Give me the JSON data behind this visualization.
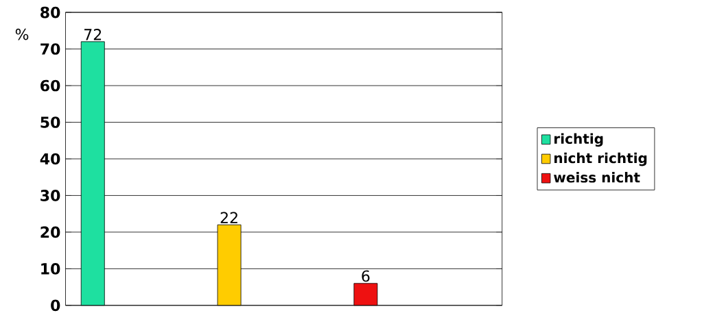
{
  "chart_data": {
    "type": "bar",
    "ylabel": "%",
    "categories": [
      null,
      null,
      null
    ],
    "series": [
      {
        "name": "richtig",
        "color": "#1ee0a0",
        "values": [
          72,
          null,
          null
        ]
      },
      {
        "name": "nicht richtig",
        "color": "#ffcc00",
        "values": [
          null,
          22,
          null
        ]
      },
      {
        "name": "weiss nicht",
        "color": "#ee1111",
        "values": [
          null,
          null,
          6
        ]
      }
    ],
    "ylim": [
      0,
      80
    ],
    "yticks": [
      0,
      10,
      20,
      30,
      40,
      50,
      60,
      70,
      80
    ],
    "grid": "y",
    "legend": "right",
    "data_labels": true
  }
}
